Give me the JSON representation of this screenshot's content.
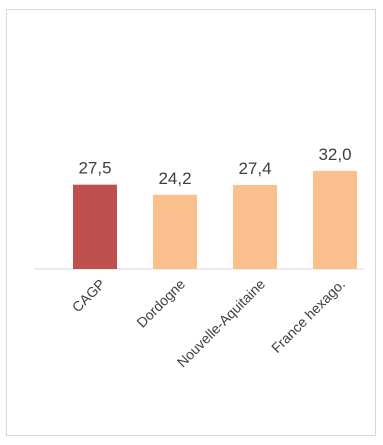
{
  "chart_data": {
    "type": "bar",
    "categories": [
      "CAGP",
      "Dordogne",
      "Nouvelle-Aquitaine",
      "France hexago."
    ],
    "values": [
      27.5,
      24.2,
      27.4,
      32.0
    ],
    "value_labels": [
      "27,5",
      "24,2",
      "27,4",
      "32,0"
    ],
    "bar_colors": [
      "#c0504d",
      "#f9c08e",
      "#f9c08e",
      "#f9c08e"
    ],
    "title": "",
    "xlabel": "",
    "ylabel": "",
    "ylim": [
      0,
      60
    ],
    "grid": false,
    "legend": "none"
  }
}
